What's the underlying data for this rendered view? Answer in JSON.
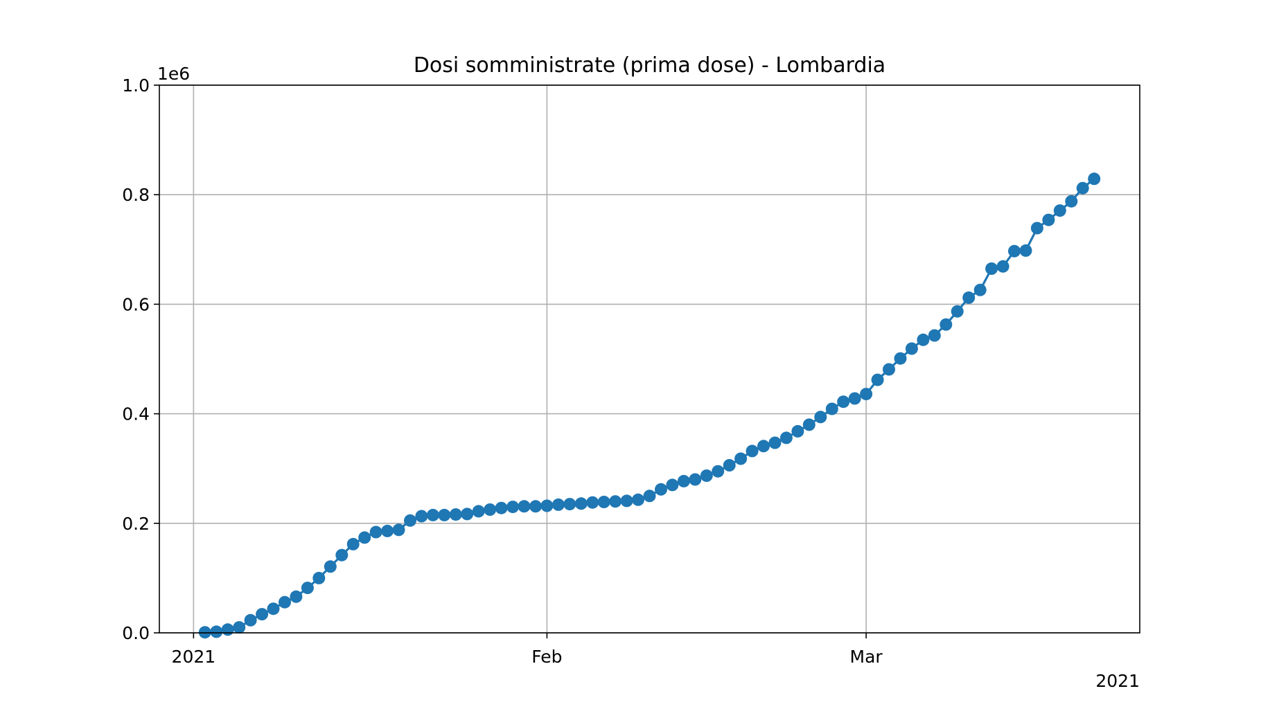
{
  "chart_data": {
    "type": "line",
    "title": "Dosi somministrate (prima dose) - Lombardia",
    "xlabel": "",
    "ylabel": "",
    "y_offset_label": "1e6",
    "x_offset_label": "2021",
    "ylim": [
      0,
      1000000
    ],
    "xlim": [
      "2020-12-29",
      "2021-03-25"
    ],
    "x_ticks": [
      {
        "date": "2021-01-01",
        "label": "2021"
      },
      {
        "date": "2021-02-01",
        "label": "Feb"
      },
      {
        "date": "2021-03-01",
        "label": "Mar"
      }
    ],
    "y_ticks": [
      {
        "value": 0,
        "label": "0.0"
      },
      {
        "value": 200000,
        "label": "0.2"
      },
      {
        "value": 400000,
        "label": "0.4"
      },
      {
        "value": 600000,
        "label": "0.6"
      },
      {
        "value": 800000,
        "label": "0.8"
      },
      {
        "value": 1000000,
        "label": "1.0"
      }
    ],
    "grid": true,
    "marker": "circle",
    "color": "#1f77b4",
    "series": [
      {
        "x": [
          "2021-01-02",
          "2021-01-03",
          "2021-01-04",
          "2021-01-05",
          "2021-01-06",
          "2021-01-07",
          "2021-01-08",
          "2021-01-09",
          "2021-01-10",
          "2021-01-11",
          "2021-01-12",
          "2021-01-13",
          "2021-01-14",
          "2021-01-15",
          "2021-01-16",
          "2021-01-17",
          "2021-01-18",
          "2021-01-19",
          "2021-01-20",
          "2021-01-21",
          "2021-01-22",
          "2021-01-23",
          "2021-01-24",
          "2021-01-25",
          "2021-01-26",
          "2021-01-27",
          "2021-01-28",
          "2021-01-29",
          "2021-01-30",
          "2021-01-31",
          "2021-02-01",
          "2021-02-02",
          "2021-02-03",
          "2021-02-04",
          "2021-02-05",
          "2021-02-06",
          "2021-02-07",
          "2021-02-08",
          "2021-02-09",
          "2021-02-10",
          "2021-02-11",
          "2021-02-12",
          "2021-02-13",
          "2021-02-14",
          "2021-02-15",
          "2021-02-16",
          "2021-02-17",
          "2021-02-18",
          "2021-02-19",
          "2021-02-20",
          "2021-02-21",
          "2021-02-22",
          "2021-02-23",
          "2021-02-24",
          "2021-02-25",
          "2021-02-26",
          "2021-02-27",
          "2021-02-28",
          "2021-03-01",
          "2021-03-02",
          "2021-03-03",
          "2021-03-04",
          "2021-03-05",
          "2021-03-06",
          "2021-03-07",
          "2021-03-08",
          "2021-03-09",
          "2021-03-10",
          "2021-03-11",
          "2021-03-12",
          "2021-03-13",
          "2021-03-14",
          "2021-03-15",
          "2021-03-16",
          "2021-03-17",
          "2021-03-18",
          "2021-03-19",
          "2021-03-20",
          "2021-03-21"
        ],
        "y": [
          1000,
          2000,
          6000,
          10000,
          23000,
          34000,
          44000,
          56000,
          66000,
          82000,
          100000,
          121000,
          142000,
          162000,
          174000,
          184000,
          186000,
          188000,
          205000,
          213000,
          215000,
          215000,
          216000,
          217000,
          222000,
          225000,
          228000,
          230000,
          231000,
          231000,
          232000,
          234000,
          235000,
          236000,
          238000,
          239000,
          240000,
          241000,
          243000,
          250000,
          262000,
          270000,
          277000,
          280000,
          287000,
          295000,
          306000,
          318000,
          332000,
          341000,
          347000,
          356000,
          368000,
          380000,
          394000,
          409000,
          422000,
          428000,
          436000,
          462000,
          481000,
          501000,
          519000,
          535000,
          543000,
          563000,
          587000,
          612000,
          626000,
          665000,
          669000,
          697000,
          698000,
          739000,
          754000,
          771000,
          788000,
          812000,
          829000
        ]
      }
    ]
  }
}
